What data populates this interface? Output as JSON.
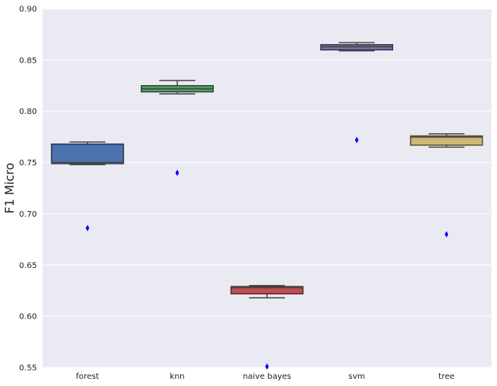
{
  "chart_data": {
    "type": "box",
    "title": "",
    "xlabel": "",
    "ylabel": "F1 Micro",
    "ylim": [
      0.55,
      0.9
    ],
    "yticks": [
      "0.55",
      "0.60",
      "0.65",
      "0.70",
      "0.75",
      "0.80",
      "0.85",
      "0.90"
    ],
    "grid": true,
    "categories": [
      "forest",
      "knn",
      "naive bayes",
      "svm",
      "tree"
    ],
    "boxes": [
      {
        "category": "forest",
        "color": "#4c72b0",
        "whisker_low": 0.748,
        "q1": 0.749,
        "median": 0.75,
        "q3": 0.768,
        "whisker_high": 0.77,
        "outliers": [
          0.686
        ]
      },
      {
        "category": "knn",
        "color": "#55a868",
        "whisker_low": 0.817,
        "q1": 0.819,
        "median": 0.822,
        "q3": 0.825,
        "whisker_high": 0.83,
        "outliers": [
          0.74
        ]
      },
      {
        "category": "naive bayes",
        "color": "#c44e52",
        "whisker_low": 0.618,
        "q1": 0.622,
        "median": 0.628,
        "q3": 0.629,
        "whisker_high": 0.63,
        "outliers": [
          0.551
        ]
      },
      {
        "category": "svm",
        "color": "#8172b2",
        "whisker_low": 0.859,
        "q1": 0.86,
        "median": 0.863,
        "q3": 0.865,
        "whisker_high": 0.867,
        "outliers": [
          0.772
        ]
      },
      {
        "category": "tree",
        "color": "#ccb974",
        "whisker_low": 0.765,
        "q1": 0.767,
        "median": 0.775,
        "q3": 0.776,
        "whisker_high": 0.778,
        "outliers": [
          0.68
        ]
      }
    ]
  }
}
